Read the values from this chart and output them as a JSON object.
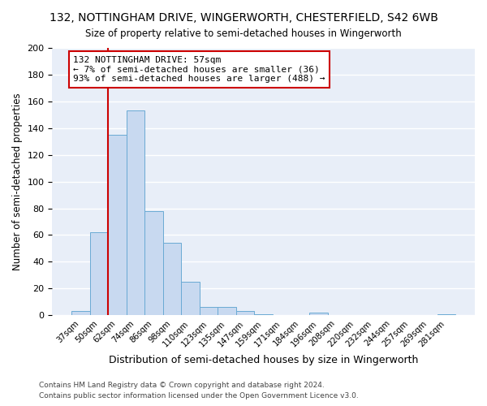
{
  "title": "132, NOTTINGHAM DRIVE, WINGERWORTH, CHESTERFIELD, S42 6WB",
  "subtitle": "Size of property relative to semi-detached houses in Wingerworth",
  "xlabel": "Distribution of semi-detached houses by size in Wingerworth",
  "ylabel": "Number of semi-detached properties",
  "bin_labels": [
    "37sqm",
    "50sqm",
    "62sqm",
    "74sqm",
    "86sqm",
    "98sqm",
    "110sqm",
    "123sqm",
    "135sqm",
    "147sqm",
    "159sqm",
    "171sqm",
    "184sqm",
    "196sqm",
    "208sqm",
    "220sqm",
    "232sqm",
    "244sqm",
    "257sqm",
    "269sqm",
    "281sqm"
  ],
  "bar_values": [
    3,
    62,
    135,
    153,
    78,
    54,
    25,
    6,
    6,
    3,
    1,
    0,
    0,
    2,
    0,
    0,
    0,
    0,
    0,
    0,
    1
  ],
  "bar_color": "#c8d9f0",
  "bar_edge_color": "#6aaad4",
  "vline_x_index": 1.5,
  "vline_color": "#cc0000",
  "ylim": [
    0,
    200
  ],
  "yticks": [
    0,
    20,
    40,
    60,
    80,
    100,
    120,
    140,
    160,
    180,
    200
  ],
  "annotation_title": "132 NOTTINGHAM DRIVE: 57sqm",
  "annotation_line1": "← 7% of semi-detached houses are smaller (36)",
  "annotation_line2": "93% of semi-detached houses are larger (488) →",
  "annotation_box_color": "#ffffff",
  "annotation_box_edge": "#cc0000",
  "footer1": "Contains HM Land Registry data © Crown copyright and database right 2024.",
  "footer2": "Contains public sector information licensed under the Open Government Licence v3.0.",
  "background_color": "#ffffff",
  "plot_bg_color": "#e8eef8",
  "grid_color": "#ffffff"
}
